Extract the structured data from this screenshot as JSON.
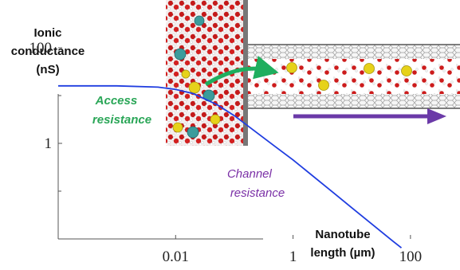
{
  "chart_data": {
    "type": "line",
    "xlabel_lines": [
      "Nanotube",
      "length (µm)"
    ],
    "ylabel_lines": [
      "Ionic",
      "conductance",
      "(nS)"
    ],
    "xscale": "log",
    "yscale": "log",
    "xlim": [
      0.0001,
      300
    ],
    "ylim": [
      0.01,
      1000
    ],
    "x_ticks": [
      {
        "value": 0.01,
        "label": "0.01"
      },
      {
        "value": 1,
        "label": "1"
      },
      {
        "value": 100,
        "label": "100"
      }
    ],
    "y_ticks": [
      {
        "value": 1,
        "label": "1"
      },
      {
        "value": 100,
        "label": "100"
      }
    ],
    "y_minor_ticks": [
      0.1,
      10
    ],
    "series": [
      {
        "color": "#1f3de0",
        "x": [
          0.0001,
          0.001,
          0.005,
          0.01,
          0.02,
          0.05,
          0.1,
          0.5,
          1,
          5,
          10,
          50,
          70
        ],
        "y": [
          16,
          16,
          15,
          13.5,
          11,
          6.5,
          3.8,
          0.85,
          0.45,
          0.09,
          0.045,
          0.009,
          0.0065
        ]
      }
    ],
    "annotations": [
      {
        "lines": [
          "Access",
          "resistance"
        ],
        "color": "#2aa657"
      },
      {
        "lines": [
          "Channel",
          "resistance"
        ],
        "color": "#7a2fa6"
      }
    ],
    "grid": false
  },
  "inset": {
    "description_icon": "nanotube-simulation-snapshot-icon",
    "green_arrow_color": "#1fae5e",
    "purple_arrow_color": "#6b3aa8"
  }
}
